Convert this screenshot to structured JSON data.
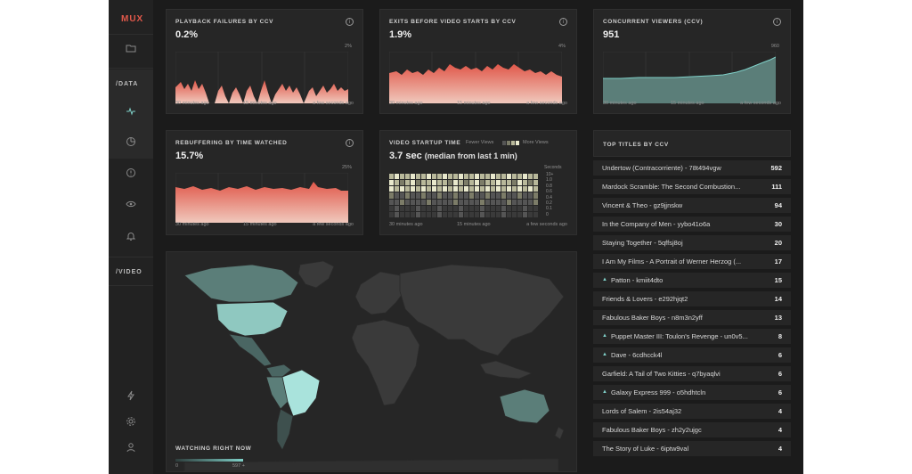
{
  "app": {
    "logo": "MUX"
  },
  "sidebar": {
    "data_label": "/DATA",
    "video_label": "/VIDEO",
    "icons": [
      "folder-icon",
      "activity-icon",
      "pie-chart-icon",
      "alert-icon",
      "eye-icon",
      "bell-icon",
      "bolt-icon",
      "gear-icon",
      "user-icon"
    ]
  },
  "panels": {
    "playback_failures": {
      "title": "PLAYBACK FAILURES BY CCV",
      "value": "0.2%",
      "ymax": "2%"
    },
    "exits_before_start": {
      "title": "EXITS BEFORE VIDEO STARTS BY CCV",
      "value": "1.9%",
      "ymax": "4%"
    },
    "concurrent_viewers": {
      "title": "CONCURRENT VIEWERS (CCV)",
      "value": "951",
      "ymax": "960"
    },
    "rebuffering": {
      "title": "REBUFFERING BY TIME WATCHED",
      "value": "15.7%",
      "ymax": "25%"
    },
    "startup_time": {
      "title": "VIDEO STARTUP TIME",
      "value": "3.7 sec",
      "value_sub": "(median from last 1 min)",
      "fewer": "Fewer Views",
      "more": "More Views",
      "axis_title": "Seconds",
      "axis_ticks": [
        "10+",
        "1.0",
        "0.8",
        "0.6",
        "0.4",
        "0.2",
        "0.1",
        "0"
      ]
    },
    "time_labels": [
      "30 minutes ago",
      "15 minutes ago",
      "a few seconds ago"
    ]
  },
  "colors": {
    "red": "#e0584a",
    "teal": "#7fd0c8",
    "bg": "#1b1b1b",
    "panel": "#262626"
  },
  "map": {
    "caption": "WATCHING RIGHT NOW",
    "min": "0",
    "max": "597 +"
  },
  "top_titles": {
    "heading": "TOP TITLES BY CCV",
    "rows": [
      {
        "name": "Undertow (Contracorriente) - 78t494vgw",
        "count": "592",
        "trend": false
      },
      {
        "name": "Mardock Scramble: The Second Combustion...",
        "count": "111",
        "trend": false
      },
      {
        "name": "Vincent & Theo - gz9jjnskw",
        "count": "94",
        "trend": false
      },
      {
        "name": "In the Company of Men - yybo41o6a",
        "count": "30",
        "trend": false
      },
      {
        "name": "Staying Together - 5qffsj8oj",
        "count": "20",
        "trend": false
      },
      {
        "name": "I Am My Films - A Portrait of Werner Herzog (...",
        "count": "17",
        "trend": false
      },
      {
        "name": "Patton - kmiit4dto",
        "count": "15",
        "trend": true
      },
      {
        "name": "Friends & Lovers - e292hjqt2",
        "count": "14",
        "trend": false
      },
      {
        "name": "Fabulous Baker Boys - n8m3n2yff",
        "count": "13",
        "trend": false
      },
      {
        "name": "Puppet Master III: Toulon's Revenge - un0v5...",
        "count": "8",
        "trend": true
      },
      {
        "name": "Dave - 6cdhcck4l",
        "count": "6",
        "trend": true
      },
      {
        "name": "Garfield: A Tail of Two Kitties - q7byaqlvi",
        "count": "6",
        "trend": false
      },
      {
        "name": "Galaxy Express 999 - o5hdhtcln",
        "count": "6",
        "trend": true
      },
      {
        "name": "Lords of Salem - 2is54aj32",
        "count": "4",
        "trend": false
      },
      {
        "name": "Fabulous Baker Boys - zh2y2ujgc",
        "count": "4",
        "trend": false
      },
      {
        "name": "The Story of Luke - 6iptw9val",
        "count": "4",
        "trend": false
      }
    ]
  }
}
